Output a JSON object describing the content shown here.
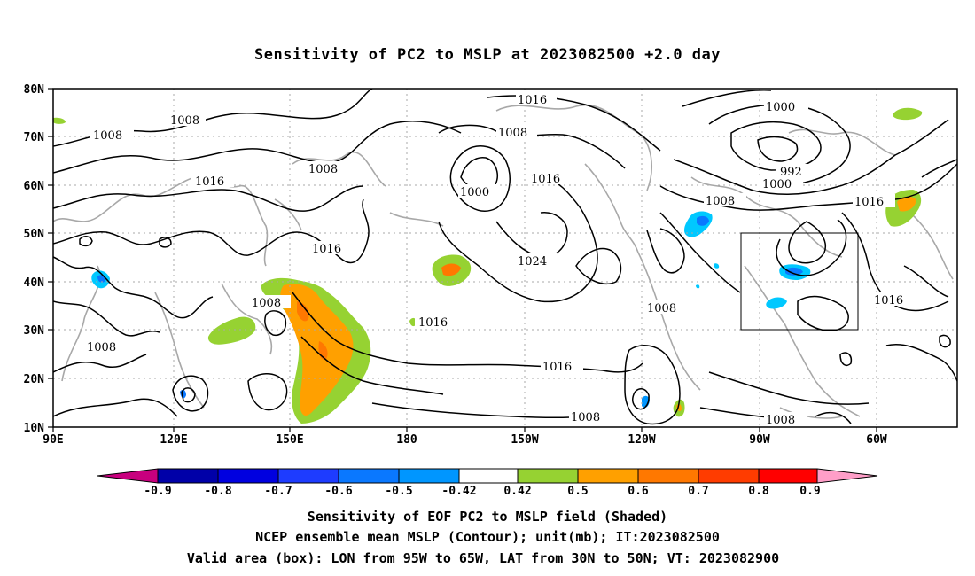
{
  "title": "Sensitivity of PC2 to MSLP at 2023082500 +2.0 day",
  "map": {
    "lon_labels": [
      "90E",
      "120E",
      "150E",
      "180",
      "150W",
      "120W",
      "90W",
      "60W"
    ],
    "lat_labels": [
      "80N",
      "70N",
      "60N",
      "50N",
      "40N",
      "30N",
      "20N",
      "10N"
    ],
    "valid_box": {
      "lon_from": "95W",
      "lon_to": "65W",
      "lat_from": "30N",
      "lat_to": "50N"
    },
    "contour_labels": [
      "1008",
      "1008",
      "1016",
      "1008",
      "1016",
      "1016",
      "1008",
      "1000",
      "1016",
      "1024",
      "1016",
      "1008",
      "1000",
      "992",
      "1000",
      "1008",
      "1016",
      "1016",
      "1008",
      "1016",
      "1008",
      "1008",
      "1008"
    ]
  },
  "colorbar": {
    "ticks": [
      "-0.9",
      "-0.8",
      "-0.7",
      "-0.6",
      "-0.5",
      "-0.42",
      "0.42",
      "0.5",
      "0.6",
      "0.7",
      "0.8",
      "0.9"
    ],
    "colors": [
      "#c8007e",
      "#0000a8",
      "#0000e0",
      "#1e3cff",
      "#0a78ff",
      "#0096ff",
      "#00c8ff",
      "#ffffff",
      "#96d232",
      "#ffa000",
      "#ff7800",
      "#ff3c00",
      "#ff0000",
      "#ff9ec8"
    ]
  },
  "footer": {
    "line1": "Sensitivity of EOF PC2 to MSLP field (Shaded)",
    "line2": "NCEP ensemble mean MSLP (Contour); unit(mb); IT:2023082500",
    "line3": "Valid area (box): LON from 95W to 65W, LAT from 30N to 50N; VT: 2023082900"
  }
}
